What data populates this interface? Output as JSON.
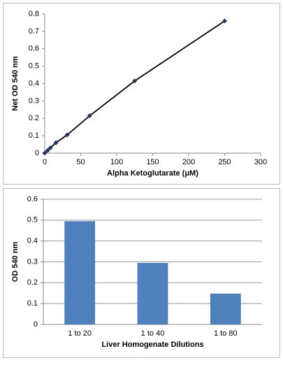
{
  "chart_data": [
    {
      "type": "scatter",
      "xlabel": "Alpha Ketoglutarate (μM)",
      "ylabel": "Net OD 540 nm",
      "x": [
        0,
        3.9,
        7.8,
        15.6,
        31.25,
        62.5,
        125,
        250
      ],
      "values": [
        0,
        0.015,
        0.03,
        0.06,
        0.105,
        0.215,
        0.415,
        0.76
      ],
      "color": "#1f3864",
      "line_color": "#000000",
      "xlim": [
        0,
        300
      ],
      "xticks": [
        0,
        50,
        100,
        150,
        200,
        250,
        300
      ],
      "ylim": [
        0,
        0.8
      ],
      "yticks": [
        0,
        0.1,
        0.2,
        0.3,
        0.4,
        0.5,
        0.6,
        0.7,
        0.8
      ],
      "grid": false
    },
    {
      "type": "bar",
      "xlabel": "Liver Homogenate Dilutions",
      "ylabel": "OD 540 nm",
      "categories": [
        "1 to 20",
        "1 to 40",
        "1 to 80"
      ],
      "values": [
        0.495,
        0.295,
        0.148
      ],
      "color": "#4f81bd",
      "ylim": [
        0,
        0.6
      ],
      "yticks": [
        0,
        0.1,
        0.2,
        0.3,
        0.4,
        0.5,
        0.6
      ],
      "grid": true
    }
  ]
}
